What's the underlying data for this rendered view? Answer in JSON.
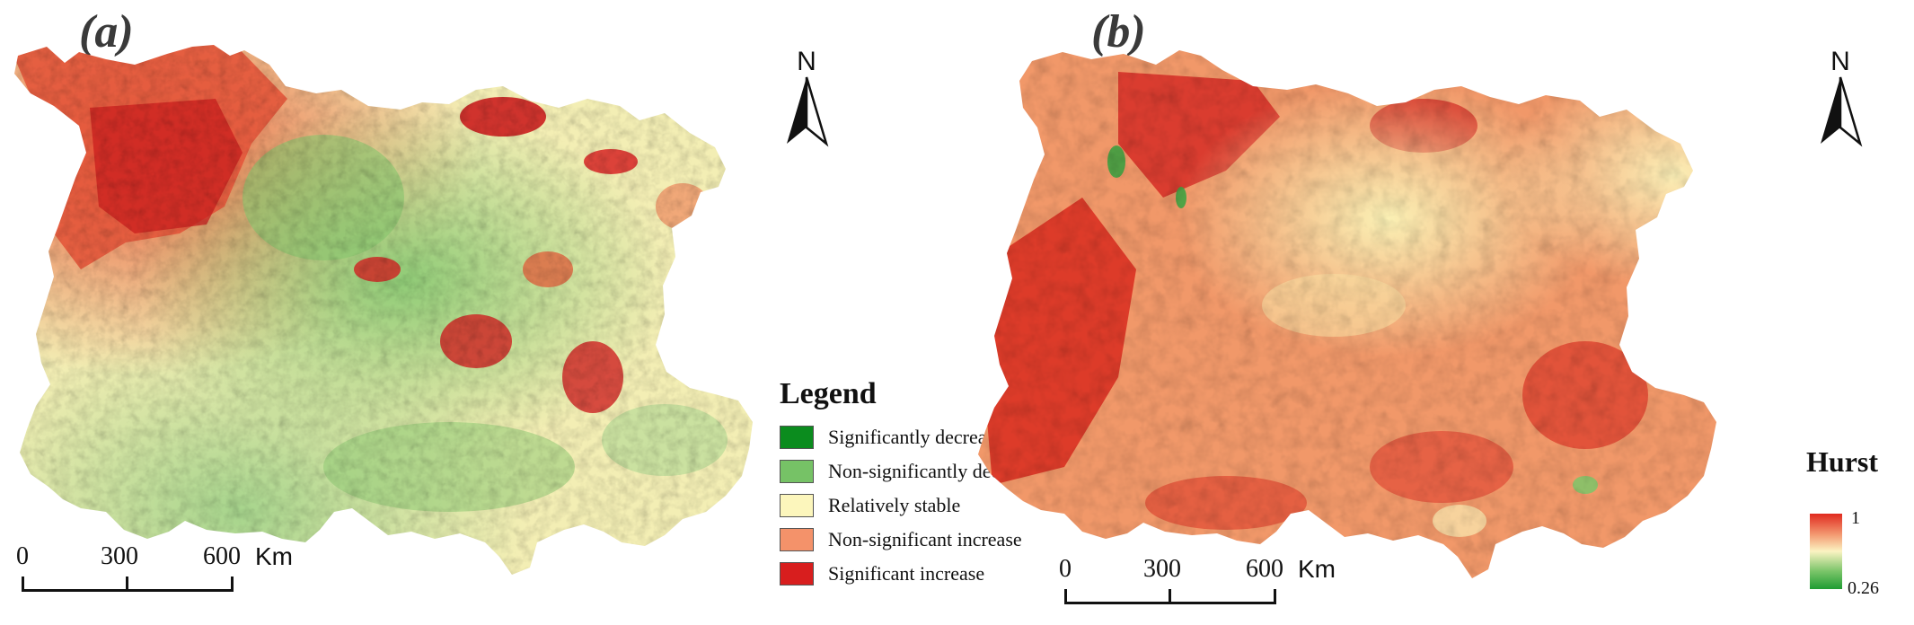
{
  "panels": [
    {
      "label": "(a)",
      "north": "N",
      "scale": {
        "ticks": [
          "0",
          "300",
          "600"
        ],
        "unit": "Km"
      },
      "legend": {
        "title": "Legend",
        "items": [
          {
            "label": "Significantly decrease",
            "color": "#0b8c1e"
          },
          {
            "label": "Non-significantly decrease",
            "color": "#76c266"
          },
          {
            "label": "Relatively stable",
            "color": "#fcf6bc"
          },
          {
            "label": "Non-significant increase",
            "color": "#f4926a"
          },
          {
            "label": "Significant increase",
            "color": "#d81e1e"
          }
        ]
      }
    },
    {
      "label": "(b)",
      "north": "N",
      "scale": {
        "ticks": [
          "0",
          "300",
          "600"
        ],
        "unit": "Km"
      },
      "hurst": {
        "title": "Hurst",
        "max_label": "1",
        "min_label": "0.26",
        "colors": [
          "#e02a1f",
          "#f39a72",
          "#fbf3c2",
          "#7cc56a",
          "#1f9c32"
        ]
      }
    }
  ]
}
